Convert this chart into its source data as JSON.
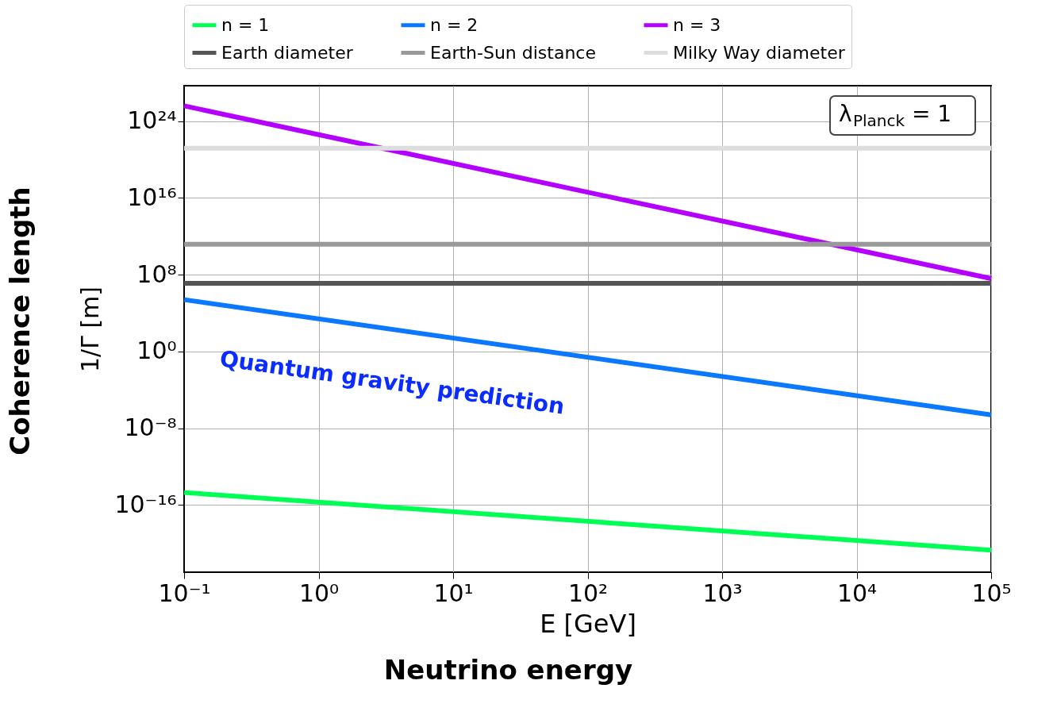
{
  "chart_data": {
    "type": "line",
    "xlabel": "E [GeV]",
    "ylabel": "1/Γ [m]",
    "log": "xy",
    "grid": true,
    "legend": "top",
    "marker": "none",
    "line_style": "solid",
    "xlim": [
      0.1,
      100000
    ],
    "ylim": [
      1e-23,
      5e+27
    ],
    "xticks": [
      {
        "value": 0.1,
        "label": "10⁻¹"
      },
      {
        "value": 1,
        "label": "10⁰"
      },
      {
        "value": 10,
        "label": "10¹"
      },
      {
        "value": 100,
        "label": "10²"
      },
      {
        "value": 1000,
        "label": "10³"
      },
      {
        "value": 10000,
        "label": "10⁴"
      },
      {
        "value": 100000,
        "label": "10⁵"
      }
    ],
    "yticks": [
      {
        "value": 1e-16,
        "label": "10⁻¹⁶"
      },
      {
        "value": 1e-08,
        "label": "10⁻⁸"
      },
      {
        "value": 1,
        "label": "10⁰"
      },
      {
        "value": 100000000.0,
        "label": "10⁸"
      },
      {
        "value": 1e+16,
        "label": "10¹⁶"
      },
      {
        "value": 1e+24,
        "label": "10²⁴"
      }
    ],
    "x": [
      0.1,
      100000
    ],
    "series": [
      {
        "name": "n = 1",
        "color": "#00ff55",
        "values": [
          2e-15,
          2e-21
        ]
      },
      {
        "name": "n = 2",
        "color": "#0a78ff",
        "values": [
          250000.0,
          2.5e-07
        ]
      },
      {
        "name": "n = 3",
        "color": "#b300ff",
        "values": [
          4e+25,
          40000000.0
        ]
      },
      {
        "name": "Earth diameter",
        "color": "#555555",
        "values": [
          12700000.0,
          12700000.0
        ]
      },
      {
        "name": "Earth-Sun distance",
        "color": "#999999",
        "values": [
          150000000000.0,
          150000000000.0
        ]
      },
      {
        "name": "Milky Way diameter",
        "color": "#dddddd",
        "values": [
          1.5e+21,
          1.5e+21
        ]
      }
    ],
    "annotations": [
      "Quantum gravity prediction",
      "λ$_{Planck}$ = 1",
      "Neutrino energy",
      "Coherence length"
    ]
  }
}
